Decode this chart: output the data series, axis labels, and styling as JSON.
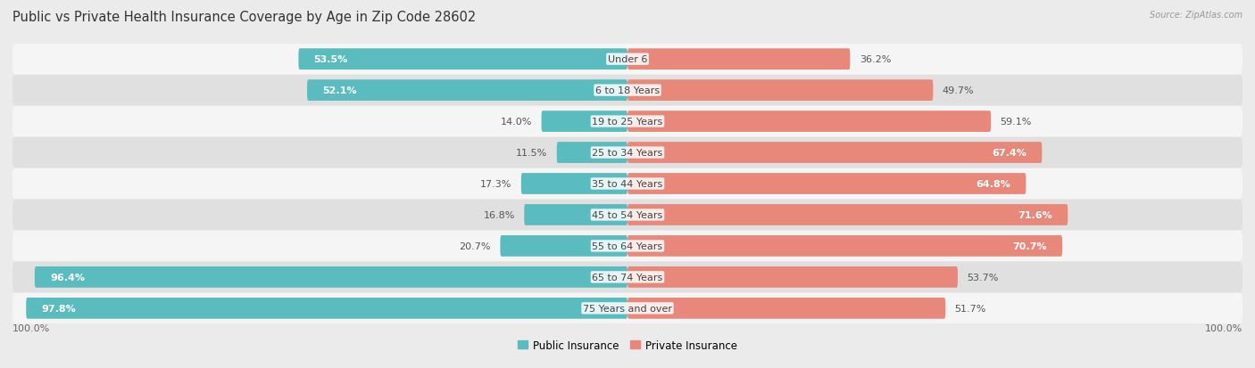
{
  "title": "Public vs Private Health Insurance Coverage by Age in Zip Code 28602",
  "source": "Source: ZipAtlas.com",
  "categories": [
    "Under 6",
    "6 to 18 Years",
    "19 to 25 Years",
    "25 to 34 Years",
    "35 to 44 Years",
    "45 to 54 Years",
    "55 to 64 Years",
    "65 to 74 Years",
    "75 Years and over"
  ],
  "public_values": [
    53.5,
    52.1,
    14.0,
    11.5,
    17.3,
    16.8,
    20.7,
    96.4,
    97.8
  ],
  "private_values": [
    36.2,
    49.7,
    59.1,
    67.4,
    64.8,
    71.6,
    70.7,
    53.7,
    51.7
  ],
  "public_color": "#5bbcbf",
  "private_color": "#e8887a",
  "background_color": "#ebebeb",
  "row_bg_odd": "#e0e0e0",
  "row_bg_even": "#f5f5f5",
  "title_fontsize": 10.5,
  "label_fontsize": 8.5,
  "value_fontsize": 8.0,
  "axis_max": 100.0,
  "legend_labels": [
    "Public Insurance",
    "Private Insurance"
  ]
}
